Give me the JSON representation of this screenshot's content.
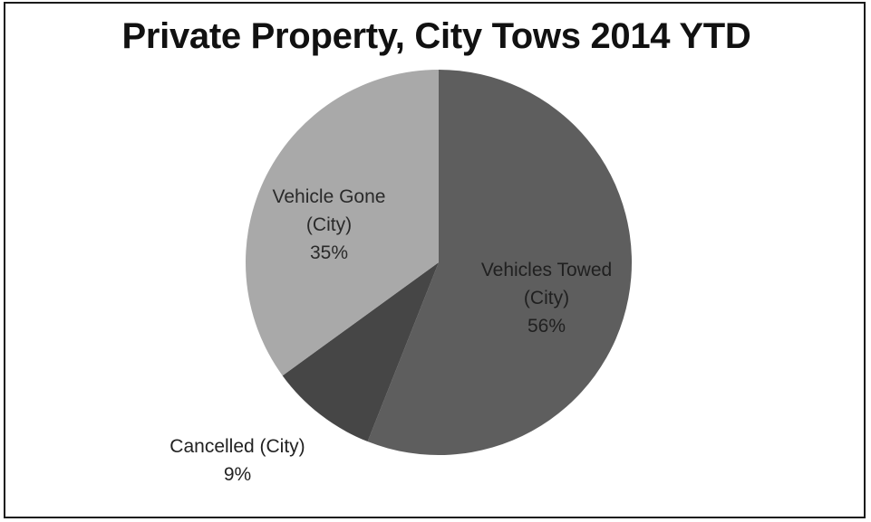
{
  "chart_data": {
    "type": "pie",
    "title": "Private Property, City Tows 2014 YTD",
    "slices": [
      {
        "name": "Vehicles Towed (City)",
        "label_lines": [
          "Vehicles Towed",
          "(City)"
        ],
        "pct_label": "56%",
        "value": 56,
        "color": "#5e5e5e",
        "text_color": "#202020"
      },
      {
        "name": "Cancelled (City)",
        "label_lines": [
          "Cancelled (City)"
        ],
        "pct_label": "9%",
        "value": 9,
        "color": "#464646",
        "text_color": "#222222"
      },
      {
        "name": "Vehicle Gone (City)",
        "label_lines": [
          "Vehicle Gone",
          "(City)"
        ],
        "pct_label": "35%",
        "value": 35,
        "color": "#a9a9a9",
        "text_color": "#2a2a2a"
      }
    ],
    "start_angle": "12 o'clock",
    "direction": "clockwise",
    "legend": "none"
  }
}
